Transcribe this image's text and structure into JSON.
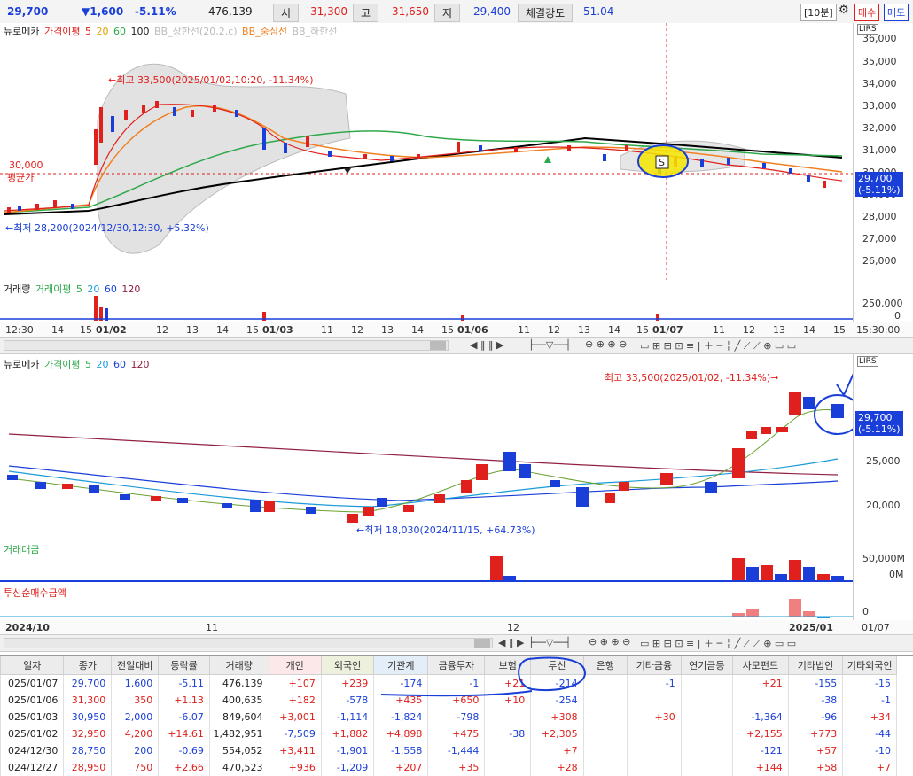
{
  "top_bar": {
    "price": "29,700",
    "change": "▼1,600",
    "change_pct": "-5.11%",
    "volume": "476,139",
    "open_label": "시",
    "open": "31,300",
    "high_label": "고",
    "high": "31,650",
    "low_label": "저",
    "low": "29,400",
    "strength_label": "체결강도",
    "strength": "51.04",
    "interval": "[10분]",
    "buy": "매수",
    "sell": "매도"
  },
  "chart1": {
    "legend": [
      "뉴로메카",
      "가격이평",
      "5",
      "20",
      "60",
      "100",
      "BB_상한선(20,2,c)",
      "BB_중심선",
      "BB_하한선"
    ],
    "y_ticks": [
      "36,000",
      "35,000",
      "34,000",
      "33,000",
      "32,000",
      "31,000",
      "30,000",
      "29,000",
      "28,000",
      "27,000",
      "26,000"
    ],
    "high_note": "←최고 33,500(2025/01/02,10:20, -11.34%)",
    "low_note": "←최저 28,200(2024/12/30,12:30, +5.32%)",
    "avg_value": "30,000",
    "avg_label": "평균가",
    "cur_price": "29,700",
    "cur_pct": "(-5.11%)",
    "marker": "S"
  },
  "vol1": {
    "legend": [
      "거래량",
      "거래이평",
      "5",
      "20",
      "60",
      "120"
    ],
    "y_ticks": [
      "250,000",
      "0"
    ]
  },
  "x1": [
    "12:30",
    "14",
    "15",
    "01/02",
    "12",
    "13",
    "14",
    "15",
    "01/03",
    "11",
    "12",
    "13",
    "14",
    "15",
    "01/06",
    "11",
    "12",
    "13",
    "14",
    "15",
    "01/07",
    "11",
    "12",
    "13",
    "14",
    "15",
    "15:30:00"
  ],
  "chart2": {
    "legend": [
      "뉴로메카",
      "가격이평",
      "5",
      "20",
      "60",
      "120"
    ],
    "y_ticks": [
      "25,000",
      "20,000"
    ],
    "high_note": "최고 33,500(2025/01/02, -11.34%)→",
    "low_note": "←최저 18,030(2024/11/15, +64.73%)",
    "cur_price": "29,700",
    "cur_pct": "(-5.11%)"
  },
  "amount": {
    "legend": "거래대금",
    "y_ticks": [
      "50,000M",
      "0M"
    ]
  },
  "inst": {
    "legend": "투신순매수금액",
    "y_ticks": [
      "0"
    ]
  },
  "x2": [
    "2024/10",
    "11",
    "12",
    "2025/01",
    "01/07"
  ],
  "table": {
    "headers": [
      "일자",
      "종가",
      "전일대비",
      "등락률",
      "거래량",
      "개인",
      "외국인",
      "기관계",
      "금융투자",
      "보험",
      "투신",
      "은행",
      "기타금융",
      "연기금등",
      "사모펀드",
      "기타법인",
      "기타외국인"
    ],
    "rows": [
      [
        "025/01/07",
        "29,700",
        "1,600",
        "-5.11",
        "476,139",
        "+107",
        "+239",
        "-174",
        "-1",
        "+21",
        "-214",
        "",
        "-1",
        "",
        "+21",
        "-155",
        "-15"
      ],
      [
        "025/01/06",
        "31,300",
        "350",
        "+1.13",
        "400,635",
        "+182",
        "-578",
        "+435",
        "+650",
        "+10",
        "-254",
        "",
        "",
        "",
        "",
        "-38",
        "-1"
      ],
      [
        "025/01/03",
        "30,950",
        "2,000",
        "-6.07",
        "849,604",
        "+3,001",
        "-1,114",
        "-1,824",
        "-798",
        "",
        "+308",
        "",
        "+30",
        "",
        "-1,364",
        "-96",
        "+34"
      ],
      [
        "025/01/02",
        "32,950",
        "4,200",
        "+14.61",
        "1,482,951",
        "-7,509",
        "+1,882",
        "+4,898",
        "+475",
        "-38",
        "+2,305",
        "",
        "",
        "",
        "+2,155",
        "+773",
        "-44"
      ],
      [
        "024/12/30",
        "28,750",
        "200",
        "-0.69",
        "554,052",
        "+3,411",
        "-1,901",
        "-1,558",
        "-1,444",
        "",
        "+7",
        "",
        "",
        "",
        "-121",
        "+57",
        "-10"
      ],
      [
        "024/12/27",
        "28,950",
        "750",
        "+2.66",
        "470,523",
        "+936",
        "-1,209",
        "+207",
        "+35",
        "",
        "+28",
        "",
        "",
        "",
        "+144",
        "+58",
        "+7"
      ]
    ]
  },
  "colors": {
    "up": "#e0201c",
    "down": "#1a3fd8",
    "ma5": "#e0201c",
    "ma20": "#f08020",
    "ma60": "#2ea84a",
    "ma100": "#000000",
    "highlight": "#f5e600",
    "annot": "#1a3fd8"
  }
}
